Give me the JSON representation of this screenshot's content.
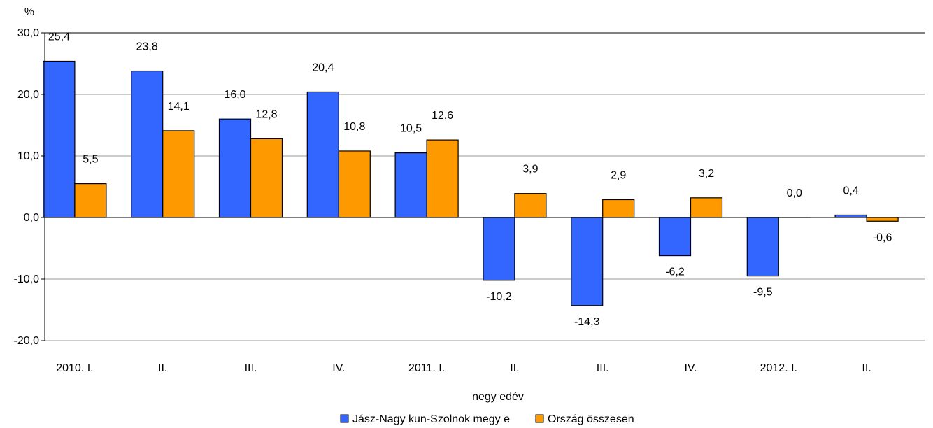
{
  "chart_data": {
    "type": "bar",
    "ylabel": "%",
    "xlabel": "negy edév",
    "ylim": [
      -20,
      30
    ],
    "yticks": [
      30,
      20,
      10,
      0,
      -10,
      -20
    ],
    "ytick_labels": [
      "30,0",
      "20,0",
      "10,0",
      "0,0",
      "-10,0",
      "-20,0"
    ],
    "grid": true,
    "legend_position": "bottom",
    "categories": [
      "2010.  I.",
      "II.",
      "III.",
      "IV.",
      "2011.  I.",
      "II.",
      "III.",
      "IV.",
      "2012.  I.",
      "II."
    ],
    "series": [
      {
        "name": "Jász-Nagy kun-Szolnok megy e",
        "color": "#3366ff",
        "values": [
          25.4,
          23.8,
          16.0,
          20.4,
          10.5,
          -10.2,
          -14.3,
          -6.2,
          -9.5,
          0.4
        ],
        "labels": [
          "25,4",
          "23,8",
          "16,0",
          "20,4",
          "10,5",
          "-10,2",
          "-14,3",
          "-6,2",
          "-9,5",
          "0,4"
        ]
      },
      {
        "name": "Ország összesen",
        "color": "#ff9900",
        "values": [
          5.5,
          14.1,
          12.8,
          10.8,
          12.6,
          3.9,
          2.9,
          3.2,
          0.0,
          -0.6
        ],
        "labels": [
          "5,5",
          "14,1",
          "12,8",
          "10,8",
          "12,6",
          "3,9",
          "2,9",
          "3,2",
          "0,0",
          "-0,6"
        ]
      }
    ]
  }
}
